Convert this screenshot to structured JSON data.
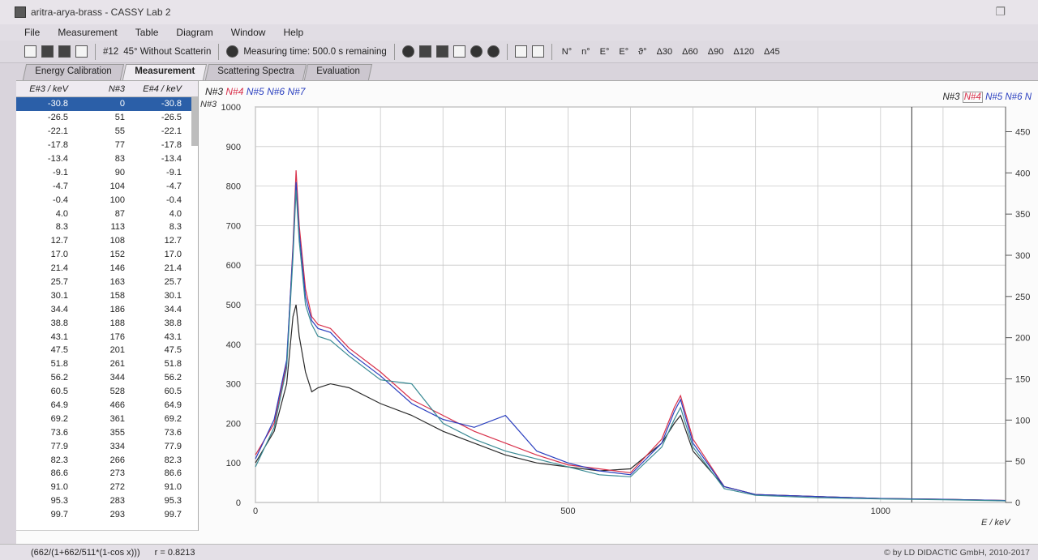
{
  "window": {
    "title": "aritra-arya-brass - CASSY Lab 2"
  },
  "menu": [
    "File",
    "Measurement",
    "Table",
    "Diagram",
    "Window",
    "Help"
  ],
  "toolbar": {
    "measurement_no": "#12",
    "measurement_label": "45° Without Scatterin",
    "timer": "Measuring time: 500.0 s remaining",
    "symbols": [
      "N°",
      "n°",
      "E°",
      "E°",
      "ϑ°",
      "Δ30",
      "Δ60",
      "Δ90",
      "Δ120",
      "Δ45"
    ]
  },
  "tabs": [
    "Energy Calibration",
    "Measurement",
    "Scattering Spectra",
    "Evaluation"
  ],
  "active_tab": "Measurement",
  "table": {
    "headers": [
      "E#3 / keV",
      "N#3",
      "E#4 / keV"
    ],
    "rows": [
      [
        "-30.8",
        "0",
        "-30.8"
      ],
      [
        "-26.5",
        "51",
        "-26.5"
      ],
      [
        "-22.1",
        "55",
        "-22.1"
      ],
      [
        "-17.8",
        "77",
        "-17.8"
      ],
      [
        "-13.4",
        "83",
        "-13.4"
      ],
      [
        "-9.1",
        "90",
        "-9.1"
      ],
      [
        "-4.7",
        "104",
        "-4.7"
      ],
      [
        "-0.4",
        "100",
        "-0.4"
      ],
      [
        "4.0",
        "87",
        "4.0"
      ],
      [
        "8.3",
        "113",
        "8.3"
      ],
      [
        "12.7",
        "108",
        "12.7"
      ],
      [
        "17.0",
        "152",
        "17.0"
      ],
      [
        "21.4",
        "146",
        "21.4"
      ],
      [
        "25.7",
        "163",
        "25.7"
      ],
      [
        "30.1",
        "158",
        "30.1"
      ],
      [
        "34.4",
        "186",
        "34.4"
      ],
      [
        "38.8",
        "188",
        "38.8"
      ],
      [
        "43.1",
        "176",
        "43.1"
      ],
      [
        "47.5",
        "201",
        "47.5"
      ],
      [
        "51.8",
        "261",
        "51.8"
      ],
      [
        "56.2",
        "344",
        "56.2"
      ],
      [
        "60.5",
        "528",
        "60.5"
      ],
      [
        "64.9",
        "466",
        "64.9"
      ],
      [
        "69.2",
        "361",
        "69.2"
      ],
      [
        "73.6",
        "355",
        "73.6"
      ],
      [
        "77.9",
        "334",
        "77.9"
      ],
      [
        "82.3",
        "266",
        "82.3"
      ],
      [
        "86.6",
        "273",
        "86.6"
      ],
      [
        "91.0",
        "272",
        "91.0"
      ],
      [
        "95.3",
        "283",
        "95.3"
      ],
      [
        "99.7",
        "293",
        "99.7"
      ]
    ]
  },
  "legend": {
    "left": [
      "N#3",
      "N#4",
      "N#5",
      "N#6",
      "N#7"
    ],
    "right": [
      "N#3",
      "N#4",
      "N#5",
      "N#6",
      "N"
    ]
  },
  "status": {
    "formula": "(662/(1+662/511*(1-cos x)))",
    "r_value": "r = 0.8213",
    "copyright": "© by LD DIDACTIC GmbH, 2010-2017"
  },
  "colors": {
    "n3": "#2a2a2a",
    "n4": "#d8304a",
    "n5": "#2a3fbf",
    "n6": "#3a8a94",
    "n7": "#6a2f8a"
  },
  "chart_data": {
    "type": "line",
    "xlabel": "E / keV",
    "ylabel_left": "N#3",
    "xlim": [
      0,
      1200
    ],
    "ylim_left": [
      0,
      1000
    ],
    "ylim_right": [
      0,
      480
    ],
    "x_ticks": [
      0,
      500,
      1000
    ],
    "y_ticks_left": [
      0,
      100,
      200,
      300,
      400,
      500,
      600,
      700,
      800,
      900,
      1000
    ],
    "y_ticks_right": [
      0,
      50,
      100,
      150,
      200,
      250,
      300,
      350,
      400,
      450
    ],
    "grid": true,
    "series": [
      {
        "name": "N#3",
        "x": [
          0,
          30,
          50,
          60,
          65,
          70,
          80,
          90,
          100,
          120,
          150,
          200,
          250,
          300,
          350,
          400,
          450,
          500,
          550,
          600,
          650,
          670,
          680,
          700,
          750,
          800,
          900,
          1000,
          1100,
          1200
        ],
        "y": [
          100,
          180,
          300,
          470,
          500,
          420,
          330,
          280,
          290,
          300,
          290,
          250,
          220,
          180,
          150,
          120,
          100,
          90,
          80,
          85,
          150,
          200,
          220,
          130,
          40,
          20,
          15,
          10,
          8,
          5
        ]
      },
      {
        "name": "N#4",
        "x": [
          0,
          30,
          50,
          60,
          65,
          70,
          80,
          90,
          100,
          120,
          150,
          200,
          250,
          300,
          350,
          400,
          450,
          500,
          550,
          600,
          650,
          670,
          680,
          700,
          750,
          800,
          900,
          1000,
          1100,
          1200
        ],
        "y": [
          120,
          200,
          350,
          650,
          840,
          700,
          540,
          470,
          450,
          440,
          390,
          330,
          260,
          220,
          180,
          150,
          120,
          95,
          85,
          75,
          160,
          240,
          270,
          160,
          40,
          20,
          15,
          10,
          8,
          5
        ]
      },
      {
        "name": "N#5",
        "x": [
          0,
          30,
          50,
          60,
          65,
          70,
          80,
          90,
          100,
          120,
          150,
          200,
          250,
          300,
          350,
          400,
          450,
          500,
          550,
          600,
          650,
          670,
          680,
          700,
          750,
          800,
          900,
          1000,
          1100,
          1200
        ],
        "y": [
          110,
          210,
          360,
          640,
          810,
          680,
          520,
          460,
          440,
          430,
          380,
          320,
          250,
          210,
          190,
          220,
          130,
          100,
          80,
          70,
          150,
          230,
          260,
          150,
          40,
          20,
          15,
          10,
          8,
          5
        ]
      },
      {
        "name": "N#6",
        "x": [
          0,
          30,
          50,
          60,
          65,
          70,
          80,
          90,
          100,
          120,
          150,
          200,
          250,
          300,
          350,
          400,
          450,
          500,
          550,
          600,
          650,
          670,
          680,
          700,
          750,
          800,
          900,
          1000,
          1100,
          1200
        ],
        "y": [
          90,
          190,
          340,
          620,
          790,
          660,
          500,
          450,
          420,
          410,
          370,
          310,
          300,
          200,
          160,
          130,
          110,
          90,
          70,
          65,
          140,
          210,
          240,
          140,
          35,
          18,
          12,
          9,
          7,
          4
        ]
      }
    ]
  }
}
